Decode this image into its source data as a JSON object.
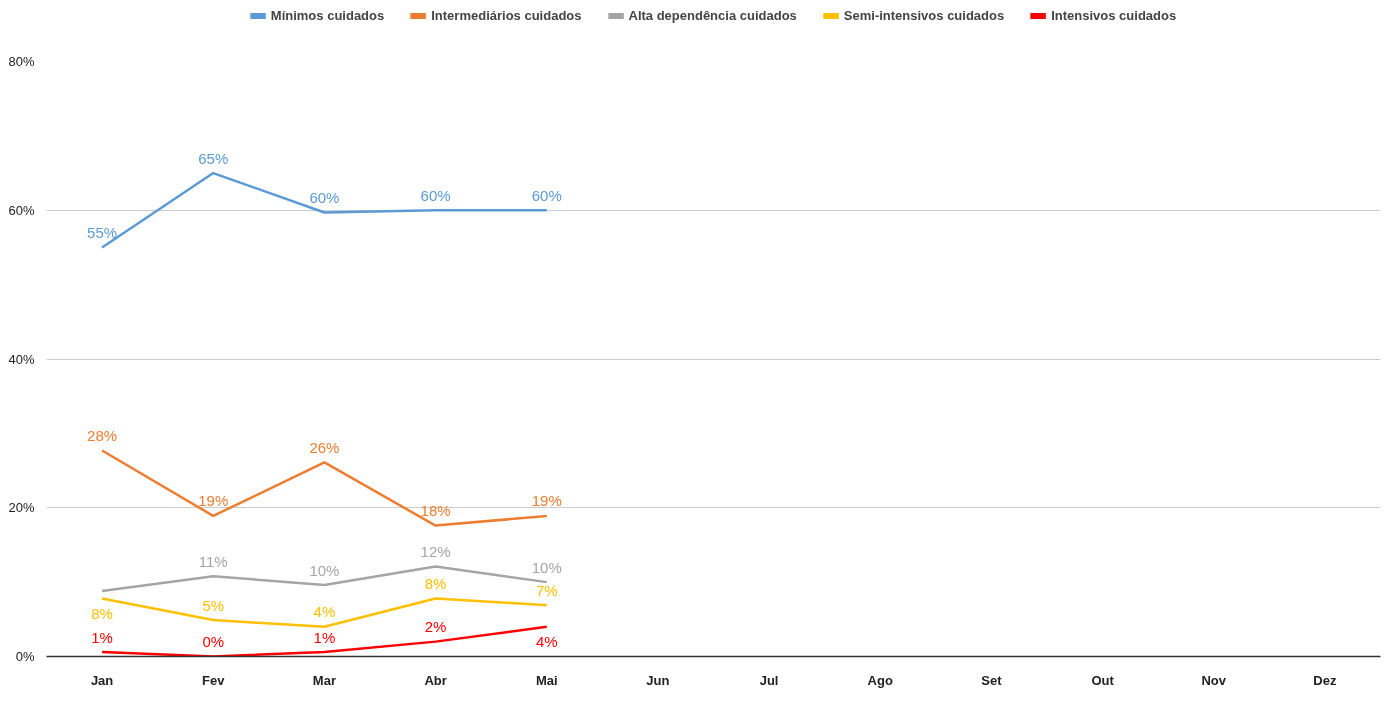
{
  "chart_data": {
    "type": "line",
    "categories": [
      "Jan",
      "Fev",
      "Mar",
      "Abr",
      "Mai",
      "Jun",
      "Jul",
      "Ago",
      "Set",
      "Out",
      "Nov",
      "Dez"
    ],
    "series": [
      {
        "name": "Mínimos cuidados",
        "color": "#5b9bd5",
        "values": [
          55,
          65,
          59.7,
          60,
          60,
          null,
          null,
          null,
          null,
          null,
          null,
          null
        ],
        "value_labels": [
          "55%",
          "65%",
          "60%",
          "60%",
          "60%",
          null,
          null,
          null,
          null,
          null,
          null,
          null
        ]
      },
      {
        "name": "Intermediários cuidados",
        "color": "#ed7d31",
        "values": [
          27.7,
          18.9,
          26.1,
          17.6,
          18.9,
          null,
          null,
          null,
          null,
          null,
          null,
          null
        ],
        "value_labels": [
          "28%",
          "19%",
          "26%",
          "18%",
          "19%",
          null,
          null,
          null,
          null,
          null,
          null,
          null
        ]
      },
      {
        "name": "Alta dependência cuidados",
        "color": "#a5a5a5",
        "values": [
          8.8,
          10.8,
          9.6,
          12.1,
          10,
          null,
          null,
          null,
          null,
          null,
          null,
          null
        ],
        "value_labels": [
          null,
          "11%",
          "10%",
          "12%",
          "10%",
          null,
          null,
          null,
          null,
          null,
          null,
          null
        ]
      },
      {
        "name": "Semi-intensivos cuidados",
        "color": "#ffc000",
        "values": [
          7.8,
          4.9,
          4,
          7.8,
          6.9,
          null,
          null,
          null,
          null,
          null,
          null,
          null
        ],
        "value_labels": [
          "8%",
          "5%",
          "4%",
          "8%",
          "7%",
          null,
          null,
          null,
          null,
          null,
          null,
          null
        ]
      },
      {
        "name": "Intensivos cuidados",
        "color": "#ff0000",
        "values": [
          0.6,
          0,
          0.6,
          2,
          4,
          null,
          null,
          null,
          null,
          null,
          null,
          null
        ],
        "value_labels": [
          "1%",
          "0%",
          "1%",
          "2%",
          "4%",
          null,
          null,
          null,
          null,
          null,
          null,
          null
        ]
      }
    ],
    "ylim": [
      0,
      80
    ],
    "yticks": [
      {
        "value": 0,
        "label": "0%"
      },
      {
        "value": 20,
        "label": "20%"
      },
      {
        "value": 40,
        "label": "40%"
      },
      {
        "value": 60,
        "label": "60%"
      },
      {
        "value": 80,
        "label": "80%"
      }
    ],
    "grid": "y",
    "legend": "top",
    "marker": "none",
    "line_style": "solid"
  }
}
